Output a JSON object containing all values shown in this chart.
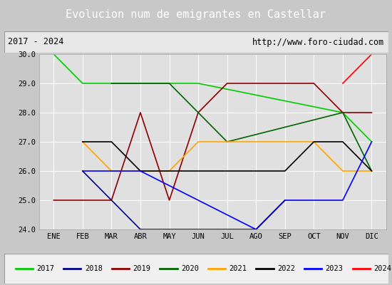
{
  "title": "Evolucion num de emigrantes en Castellar",
  "subtitle_left": "2017 - 2024",
  "subtitle_right": "http://www.foro-ciudad.com",
  "months": [
    "ENE",
    "FEB",
    "MAR",
    "ABR",
    "MAY",
    "JUN",
    "JUL",
    "AGO",
    "SEP",
    "OCT",
    "NOV",
    "DIC"
  ],
  "ylim": [
    24.0,
    30.0
  ],
  "yticks": [
    24.0,
    25.0,
    26.0,
    27.0,
    28.0,
    29.0,
    30.0
  ],
  "series": [
    {
      "year": "2017",
      "color": "#00cc00",
      "x": [
        0,
        1,
        2,
        3,
        4,
        5,
        6,
        10,
        11
      ],
      "y": [
        30,
        29,
        29,
        29,
        29,
        29,
        29,
        28,
        27
      ]
    },
    {
      "year": "2018",
      "color": "#00008b",
      "x": [
        1,
        2,
        3,
        4,
        7,
        8
      ],
      "y": [
        26,
        25,
        24,
        24,
        24,
        25
      ]
    },
    {
      "year": "2019",
      "color": "#8b0000",
      "x": [
        0,
        1,
        2,
        3,
        4,
        5,
        6,
        7,
        8,
        9,
        10,
        11
      ],
      "y": [
        25,
        25,
        25,
        28,
        25,
        28,
        29,
        29,
        29,
        29,
        28,
        28
      ]
    },
    {
      "year": "2020",
      "color": "#006400",
      "x": [
        2,
        3,
        4,
        5,
        6,
        10,
        11
      ],
      "y": [
        29,
        29,
        29,
        28,
        27,
        28,
        26
      ]
    },
    {
      "year": "2021",
      "color": "#ffa500",
      "x": [
        1,
        2,
        3,
        4,
        5,
        6,
        7,
        8,
        9,
        10,
        11
      ],
      "y": [
        27,
        26,
        26,
        26,
        27,
        27,
        27,
        27,
        27,
        26,
        26
      ]
    },
    {
      "year": "2022",
      "color": "#000000",
      "x": [
        1,
        2,
        3,
        4,
        5,
        6,
        7,
        8,
        9,
        10,
        11
      ],
      "y": [
        27,
        27,
        26,
        26,
        26,
        26,
        26,
        26,
        27,
        27,
        26
      ]
    },
    {
      "year": "2023",
      "color": "#0000ff",
      "x": [
        1,
        2,
        3,
        4,
        7,
        8,
        9,
        10,
        11
      ],
      "y": [
        26,
        26,
        26,
        26,
        24,
        25,
        25,
        25,
        27
      ]
    },
    {
      "year": "2024",
      "color": "#ff0000",
      "x": [
        10,
        11
      ],
      "y": [
        29,
        30
      ]
    }
  ],
  "title_bg_color": "#4488cc",
  "title_fg_color": "#ffffff",
  "plot_bg_color": "#e0e0e0",
  "grid_color": "#ffffff",
  "legend_bg_color": "#f0f0f0",
  "fig_bg_color": "#c8c8c8"
}
